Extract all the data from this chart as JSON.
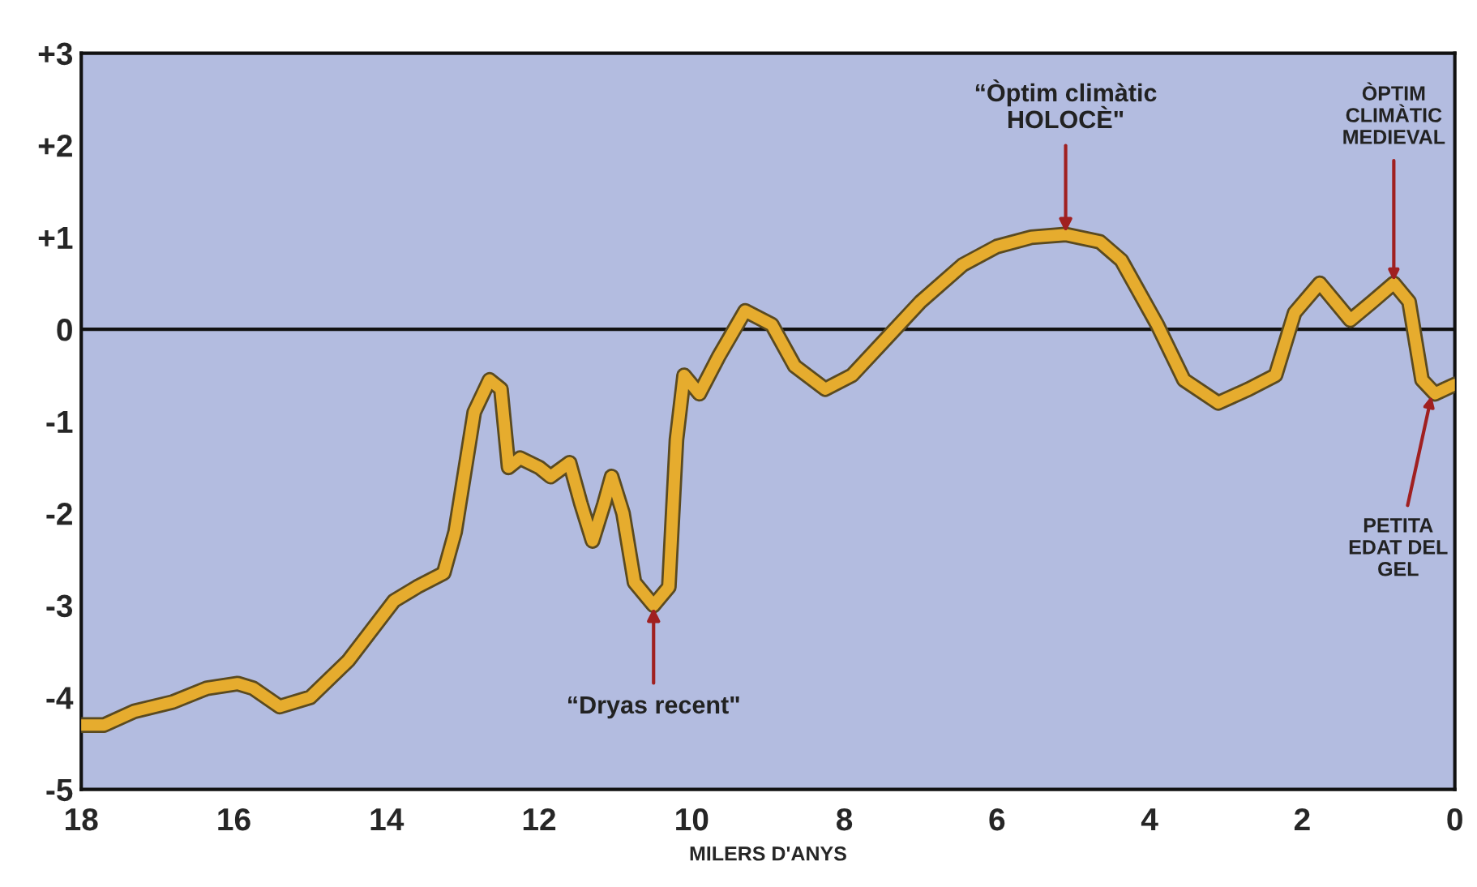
{
  "chart_data": {
    "type": "line",
    "xlabel": "MILERS D'ANYS",
    "xlim": [
      18,
      0
    ],
    "xticks": [
      18,
      16,
      14,
      12,
      10,
      8,
      6,
      4,
      2,
      0
    ],
    "ylim": [
      -5,
      3
    ],
    "yticks": [
      {
        "value": 3,
        "label": "+3"
      },
      {
        "value": 2,
        "label": "+2"
      },
      {
        "value": 1,
        "label": "+1"
      },
      0,
      -1,
      -2,
      -3,
      -4,
      -5
    ],
    "grid": false,
    "marker": "none",
    "line_style": "solid",
    "ref_lines": [
      {
        "axis": "y",
        "value": 0,
        "color": "#111111"
      }
    ],
    "series": [
      {
        "color": "#e6ac2e",
        "x": [
          18,
          17.7,
          17.3,
          16.8,
          16.35,
          15.95,
          15.75,
          15.4,
          15.0,
          14.5,
          13.9,
          13.6,
          13.25,
          13.1,
          12.85,
          12.65,
          12.5,
          12.4,
          12.25,
          12.0,
          11.85,
          11.6,
          11.45,
          11.3,
          11.15,
          11.05,
          10.9,
          10.75,
          10.5,
          10.3,
          10.2,
          10.1,
          9.9,
          9.65,
          9.3,
          8.95,
          8.65,
          8.25,
          7.9,
          7.45,
          7.0,
          6.45,
          6.0,
          5.55,
          5.1,
          4.65,
          4.37,
          3.9,
          3.55,
          3.1,
          2.7,
          2.35,
          2.1,
          1.77,
          1.37,
          1.08,
          0.8,
          0.6,
          0.43,
          0.26,
          0
        ],
        "values": [
          -4.3,
          -4.3,
          -4.15,
          -4.05,
          -3.9,
          -3.85,
          -3.9,
          -4.1,
          -4.0,
          -3.6,
          -2.95,
          -2.8,
          -2.65,
          -2.2,
          -0.9,
          -0.55,
          -0.65,
          -1.5,
          -1.4,
          -1.5,
          -1.6,
          -1.45,
          -1.9,
          -2.3,
          -1.9,
          -1.6,
          -2.0,
          -2.75,
          -3.0,
          -2.8,
          -1.2,
          -0.5,
          -0.7,
          -0.3,
          0.2,
          0.05,
          -0.4,
          -0.65,
          -0.5,
          -0.1,
          0.3,
          0.7,
          0.9,
          1.0,
          1.03,
          0.95,
          0.75,
          0.05,
          -0.55,
          -0.8,
          -0.65,
          -0.5,
          0.18,
          0.5,
          0.1,
          0.3,
          0.5,
          0.3,
          -0.55,
          -0.7,
          -0.6
        ]
      }
    ],
    "annotations": [
      {
        "text": "“Dryas recent\"",
        "x": 10.5,
        "y": -3.0
      },
      {
        "text": "“Òptim climàtic\nHOLOCÈ\"",
        "x": 5.1,
        "y": 1.03
      },
      {
        "text": "ÒPTIM\nCLIMÀTIC\nMEDIEVAL",
        "x": 0.8,
        "y": 0.5
      },
      {
        "text": "PETITA\nEDAT DEL\nGEL",
        "x": 0.3,
        "y": -0.7
      }
    ]
  }
}
